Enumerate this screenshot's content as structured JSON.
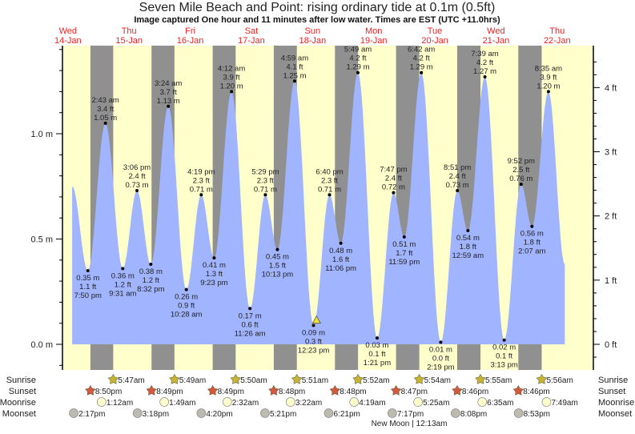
{
  "header": {
    "title": "Seven Mile Beach and Point: rising  ordinary tide at 0.1m (0.5ft)",
    "subtitle": "Image captured One hour and 11 minutes after low water. Times are EST (UTC +11.0hrs)"
  },
  "days": [
    {
      "dow": "Wed",
      "date": "14-Jan"
    },
    {
      "dow": "Thu",
      "date": "15-Jan"
    },
    {
      "dow": "Fri",
      "date": "16-Jan"
    },
    {
      "dow": "Sat",
      "date": "17-Jan"
    },
    {
      "dow": "Sun",
      "date": "18-Jan"
    },
    {
      "dow": "Mon",
      "date": "19-Jan"
    },
    {
      "dow": "Tue",
      "date": "20-Jan"
    },
    {
      "dow": "Wed",
      "date": "21-Jan"
    },
    {
      "dow": "Thu",
      "date": "22-Jan"
    }
  ],
  "colors": {
    "day_bg": "#ffffcc",
    "night_bg": "#909090",
    "tide_fill": "#a0b4ff",
    "day_label": "#ee2222",
    "sunrise_icon": "#c8b432",
    "sunset_icon": "#d4583c",
    "moonrise_icon": "#ffffcc",
    "moonset_icon": "#bdbab0",
    "current_marker": "#f0e030"
  },
  "chart_data": {
    "type": "area",
    "title": "Seven Mile Beach and Point: rising  ordinary tide at 0.1m (0.5ft)",
    "left_axis": {
      "unit": "m",
      "ticks": [
        "0.0 m",
        "0.5 m",
        "1.0 m"
      ],
      "tick_values": [
        0,
        0.5,
        1.0
      ]
    },
    "right_axis": {
      "unit": "ft",
      "ticks": [
        "0 ft",
        "1 ft",
        "2 ft",
        "3 ft",
        "4 ft"
      ],
      "tick_values": [
        0,
        1,
        2,
        3,
        4
      ]
    },
    "ylim_m": [
      -0.12,
      1.42
    ],
    "curve_start": {
      "date": "14-Jan",
      "time": "1:40 pm",
      "m": 0.75
    },
    "curve_end": {
      "date": "22-Jan",
      "time": "3:00 pm",
      "m": 0.38
    },
    "extremes": [
      {
        "type": "low",
        "date": "14-Jan",
        "time": "7:50 pm",
        "m": "0.35 m",
        "ft": "1.1 ft"
      },
      {
        "type": "high",
        "date": "15-Jan",
        "time": "2:43 am",
        "m": "1.05 m",
        "ft": "3.4 ft"
      },
      {
        "type": "low",
        "date": "15-Jan",
        "time": "9:31 am",
        "m": "0.36 m",
        "ft": "1.2 ft"
      },
      {
        "type": "high",
        "date": "15-Jan",
        "time": "3:06 pm",
        "m": "0.73 m",
        "ft": "2.4 ft"
      },
      {
        "type": "low",
        "date": "15-Jan",
        "time": "8:32 pm",
        "m": "0.38 m",
        "ft": "1.2 ft"
      },
      {
        "type": "high",
        "date": "16-Jan",
        "time": "3:24 am",
        "m": "1.13 m",
        "ft": "3.7 ft"
      },
      {
        "type": "low",
        "date": "16-Jan",
        "time": "10:28 am",
        "m": "0.26 m",
        "ft": "0.9 ft"
      },
      {
        "type": "high",
        "date": "16-Jan",
        "time": "4:19 pm",
        "m": "0.71 m",
        "ft": "2.3 ft"
      },
      {
        "type": "low",
        "date": "16-Jan",
        "time": "9:23 pm",
        "m": "0.41 m",
        "ft": "1.3 ft"
      },
      {
        "type": "high",
        "date": "17-Jan",
        "time": "4:12 am",
        "m": "1.20 m",
        "ft": "3.9 ft"
      },
      {
        "type": "low",
        "date": "17-Jan",
        "time": "11:26 am",
        "m": "0.17 m",
        "ft": "0.6 ft"
      },
      {
        "type": "high",
        "date": "17-Jan",
        "time": "5:29 pm",
        "m": "0.71 m",
        "ft": "2.3 ft"
      },
      {
        "type": "low",
        "date": "17-Jan",
        "time": "10:13 pm",
        "m": "0.45 m",
        "ft": "1.5 ft"
      },
      {
        "type": "high",
        "date": "18-Jan",
        "time": "4:59 am",
        "m": "1.25 m",
        "ft": "4.1 ft"
      },
      {
        "type": "low",
        "date": "18-Jan",
        "time": "12:23 pm",
        "m": "0.09 m",
        "ft": "0.3 ft"
      },
      {
        "type": "high",
        "date": "18-Jan",
        "time": "6:40 pm",
        "m": "0.71 m",
        "ft": "2.3 ft"
      },
      {
        "type": "low",
        "date": "18-Jan",
        "time": "11:06 pm",
        "m": "0.48 m",
        "ft": "1.6 ft"
      },
      {
        "type": "high",
        "date": "19-Jan",
        "time": "5:49 am",
        "m": "1.29 m",
        "ft": "4.2 ft"
      },
      {
        "type": "low",
        "date": "19-Jan",
        "time": "1:21 pm",
        "m": "0.03 m",
        "ft": "0.1 ft"
      },
      {
        "type": "high",
        "date": "19-Jan",
        "time": "7:47 pm",
        "m": "0.72 m",
        "ft": "2.4 ft"
      },
      {
        "type": "low",
        "date": "19-Jan",
        "time": "11:59 pm",
        "m": "0.51 m",
        "ft": "1.7 ft"
      },
      {
        "type": "high",
        "date": "20-Jan",
        "time": "6:42 am",
        "m": "1.29 m",
        "ft": "4.2 ft"
      },
      {
        "type": "low",
        "date": "20-Jan",
        "time": "2:19 pm",
        "m": "0.01 m",
        "ft": "0.0 ft"
      },
      {
        "type": "high",
        "date": "20-Jan",
        "time": "8:51 pm",
        "m": "0.73 m",
        "ft": "2.4 ft"
      },
      {
        "type": "low",
        "date": "21-Jan",
        "time": "12:59 am",
        "m": "0.54 m",
        "ft": "1.8 ft"
      },
      {
        "type": "high",
        "date": "21-Jan",
        "time": "7:39 am",
        "m": "1.27 m",
        "ft": "4.2 ft"
      },
      {
        "type": "low",
        "date": "21-Jan",
        "time": "3:13 pm",
        "m": "0.02 m",
        "ft": "0.1 ft"
      },
      {
        "type": "high",
        "date": "21-Jan",
        "time": "9:52 pm",
        "m": "0.76 m",
        "ft": "2.5 ft"
      },
      {
        "type": "low",
        "date": "22-Jan",
        "time": "2:07 am",
        "m": "0.56 m",
        "ft": "1.8 ft"
      },
      {
        "type": "high",
        "date": "22-Jan",
        "time": "8:35 am",
        "m": "1.20 m",
        "ft": "3.9 ft"
      }
    ],
    "current": {
      "date": "18-Jan",
      "time": "1:34 pm",
      "m": 0.1
    }
  },
  "rows": {
    "sunrise": {
      "label": "Sunrise",
      "events": [
        {
          "date": "15-Jan",
          "time": "5:47am"
        },
        {
          "date": "16-Jan",
          "time": "5:49am"
        },
        {
          "date": "17-Jan",
          "time": "5:50am"
        },
        {
          "date": "18-Jan",
          "time": "5:51am"
        },
        {
          "date": "19-Jan",
          "time": "5:52am"
        },
        {
          "date": "20-Jan",
          "time": "5:54am"
        },
        {
          "date": "21-Jan",
          "time": "5:55am"
        },
        {
          "date": "22-Jan",
          "time": "5:56am"
        }
      ]
    },
    "sunset": {
      "label": "Sunset",
      "events": [
        {
          "date": "14-Jan",
          "time": "8:50pm"
        },
        {
          "date": "15-Jan",
          "time": "8:49pm"
        },
        {
          "date": "16-Jan",
          "time": "8:49pm"
        },
        {
          "date": "17-Jan",
          "time": "8:48pm"
        },
        {
          "date": "18-Jan",
          "time": "8:48pm"
        },
        {
          "date": "19-Jan",
          "time": "8:47pm"
        },
        {
          "date": "20-Jan",
          "time": "8:46pm"
        },
        {
          "date": "21-Jan",
          "time": "8:46pm"
        }
      ]
    },
    "moonrise": {
      "label": "Moonrise",
      "events": [
        {
          "date": "15-Jan",
          "time": "1:12am"
        },
        {
          "date": "16-Jan",
          "time": "1:49am"
        },
        {
          "date": "17-Jan",
          "time": "2:32am"
        },
        {
          "date": "18-Jan",
          "time": "3:22am"
        },
        {
          "date": "19-Jan",
          "time": "4:19am"
        },
        {
          "date": "20-Jan",
          "time": "5:25am"
        },
        {
          "date": "21-Jan",
          "time": "6:35am"
        },
        {
          "date": "22-Jan",
          "time": "7:49am"
        }
      ]
    },
    "moonset": {
      "label": "Moonset",
      "events": [
        {
          "date": "14-Jan",
          "time": "2:17pm"
        },
        {
          "date": "15-Jan",
          "time": "3:18pm"
        },
        {
          "date": "16-Jan",
          "time": "4:20pm"
        },
        {
          "date": "17-Jan",
          "time": "5:21pm"
        },
        {
          "date": "18-Jan",
          "time": "6:21pm"
        },
        {
          "date": "19-Jan",
          "time": "7:17pm"
        },
        {
          "date": "20-Jan",
          "time": "8:08pm"
        },
        {
          "date": "21-Jan",
          "time": "8:53pm"
        }
      ]
    }
  },
  "moon_phase": {
    "text": "New Moon | 12:13am",
    "date": "20-Jan",
    "time": "12:13am"
  }
}
